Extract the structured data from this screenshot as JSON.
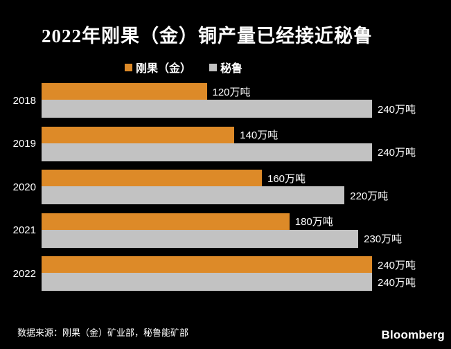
{
  "title": "2022年刚果（金）铜产量已经接近秘鲁",
  "legend": [
    {
      "label": "刚果（金）",
      "color": "#DD8A28"
    },
    {
      "label": "秘鲁",
      "color": "#C2C2C2"
    }
  ],
  "source": "数据来源：刚果（金）矿业部，秘鲁能矿部",
  "brand": "Bloomberg",
  "colors": {
    "background": "#000000",
    "congo_orange": "#DD8A28",
    "peru_gray": "#C2C2C2",
    "text": "#FFFFFF"
  },
  "chart_data": {
    "type": "bar",
    "orientation": "horizontal",
    "title": "2022年刚果（金）铜产量已经接近秘鲁",
    "categories": [
      "2018",
      "2019",
      "2020",
      "2021",
      "2022"
    ],
    "series": [
      {
        "name": "刚果（金）",
        "color": "#DD8A28",
        "values": [
          120,
          140,
          160,
          180,
          240
        ],
        "labels": [
          "120万吨",
          "140万吨",
          "160万吨",
          "180万吨",
          "240万吨"
        ]
      },
      {
        "name": "秘鲁",
        "color": "#C2C2C2",
        "values": [
          240,
          240,
          220,
          230,
          240
        ],
        "labels": [
          "240万吨",
          "240万吨",
          "220万吨",
          "230万吨",
          "240万吨"
        ]
      }
    ],
    "unit": "万吨",
    "xlim": [
      0,
      240
    ],
    "grid": false,
    "legend_position": "top",
    "value_labels": "outside-end"
  }
}
